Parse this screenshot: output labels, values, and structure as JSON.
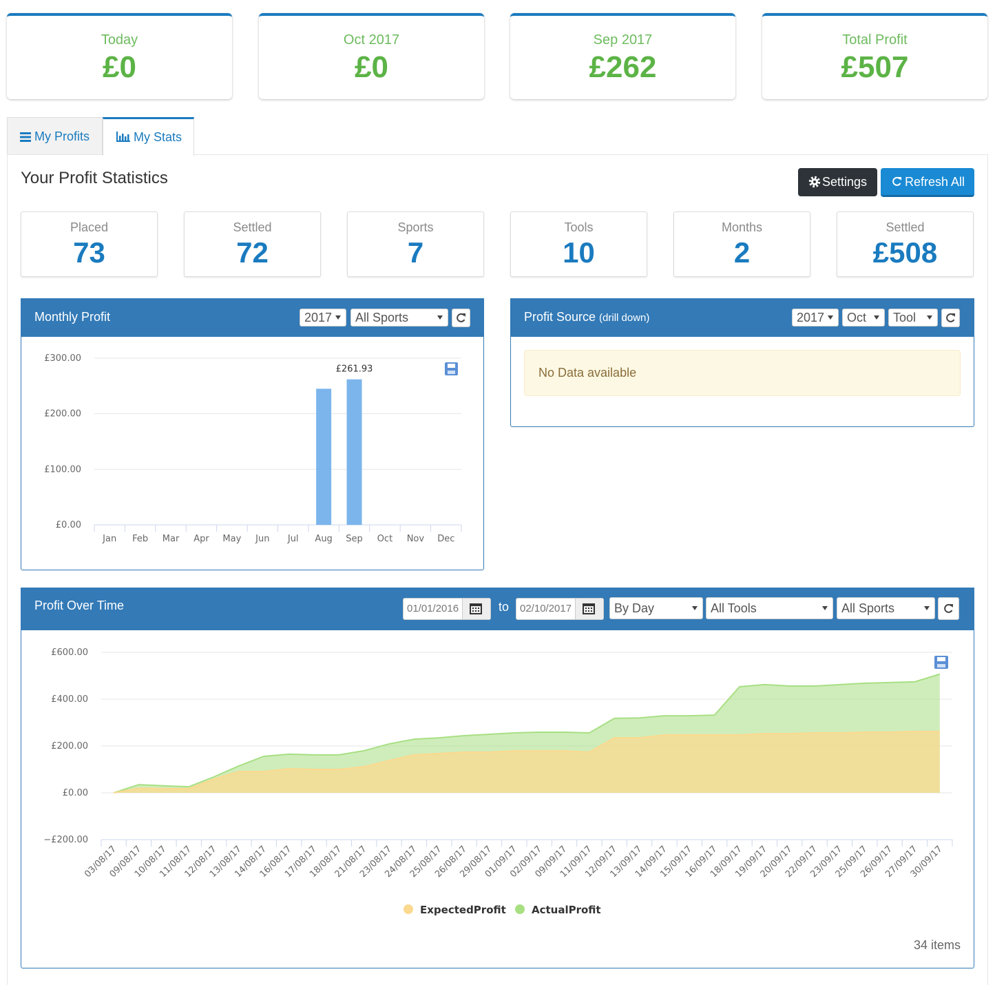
{
  "summary_cards": [
    {
      "label": "Today",
      "value": "£0"
    },
    {
      "label": "Oct 2017",
      "value": "£0"
    },
    {
      "label": "Sep 2017",
      "value": "£262"
    },
    {
      "label": "Total Profit",
      "value": "£507"
    }
  ],
  "tabs": [
    "My Profits",
    "My Stats"
  ],
  "section_title": "Your Profit Statistics",
  "buttons": [
    "Settings",
    "Refresh All"
  ],
  "stats": [
    {
      "label": "Placed",
      "value": 73
    },
    {
      "label": "Settled",
      "value": 72
    },
    {
      "label": "Sports",
      "value": 7
    },
    {
      "label": "Tools",
      "value": 10
    },
    {
      "label": "Months",
      "value": 2
    },
    {
      "label": "Settled",
      "value": "£508"
    }
  ],
  "profit_source": {
    "title": "Profit Source",
    "subtitle": "(drill down)",
    "filters": [
      "2017",
      "Oct",
      "Tool"
    ],
    "message": "No Data available"
  },
  "chart_data": [
    {
      "type": "bar",
      "title": "Monthly Profit",
      "filters": [
        "2017",
        "All Sports"
      ],
      "categories": [
        "Jan",
        "Feb",
        "Mar",
        "Apr",
        "May",
        "Jun",
        "Jul",
        "Aug",
        "Sep",
        "Oct",
        "Nov",
        "Dec"
      ],
      "values": [
        null,
        null,
        null,
        null,
        null,
        null,
        null,
        245,
        261.93,
        null,
        null,
        null
      ],
      "value_labels": [
        null,
        null,
        null,
        null,
        null,
        null,
        null,
        null,
        "£261.93",
        null,
        null,
        null
      ],
      "color": "#7cb5ec",
      "ylim": [
        0,
        300
      ],
      "yticks": [
        {
          "value": 0,
          "label": "£0.00"
        },
        {
          "value": 100,
          "label": "£100.00"
        },
        {
          "value": 200,
          "label": "£200.00"
        },
        {
          "value": 300,
          "label": "£300.00"
        }
      ],
      "grid": true
    },
    {
      "type": "area",
      "title": "Profit Over Time",
      "date_from": "01/01/2016",
      "range_word": "to",
      "date_to": "02/10/2017",
      "filters": [
        "By Day",
        "All Tools",
        "All Sports"
      ],
      "categories": [
        "03/08/17",
        "09/08/17",
        "10/08/17",
        "11/08/17",
        "12/08/17",
        "13/08/17",
        "14/08/17",
        "16/08/17",
        "17/08/17",
        "18/08/17",
        "21/08/17",
        "23/08/17",
        "24/08/17",
        "25/08/17",
        "26/08/17",
        "29/08/17",
        "01/09/17",
        "02/09/17",
        "09/09/17",
        "11/09/17",
        "12/09/17",
        "13/09/17",
        "14/09/17",
        "15/09/17",
        "16/09/17",
        "18/09/17",
        "19/09/17",
        "20/09/17",
        "22/09/17",
        "23/09/17",
        "25/09/17",
        "26/09/17",
        "27/09/17",
        "30/09/17"
      ],
      "series": [
        {
          "name": "ExpectedProfit",
          "color": "#fbd98f",
          "values": [
            0,
            20,
            18,
            18,
            59,
            91,
            91,
            103,
            100,
            100,
            112,
            138,
            162,
            168,
            174,
            174,
            179,
            179,
            179,
            174,
            235,
            235,
            247,
            247,
            247,
            247,
            253,
            253,
            256,
            256,
            259,
            259,
            262,
            262
          ]
        },
        {
          "name": "ActualProfit",
          "color": "#a8df83",
          "values": [
            0,
            35,
            30,
            26,
            68,
            115,
            156,
            165,
            162,
            162,
            180,
            209,
            229,
            235,
            244,
            250,
            256,
            259,
            259,
            256,
            318,
            320,
            329,
            329,
            332,
            453,
            462,
            456,
            456,
            462,
            468,
            471,
            474,
            507
          ]
        }
      ],
      "ylim": [
        -200,
        600
      ],
      "yticks": [
        {
          "value": -200,
          "label": "−£200.00"
        },
        {
          "value": 0,
          "label": "£0.00"
        },
        {
          "value": 200,
          "label": "£200.00"
        },
        {
          "value": 400,
          "label": "£400.00"
        },
        {
          "value": 600,
          "label": "£600.00"
        }
      ],
      "grid": true,
      "footer": "34 items"
    }
  ]
}
